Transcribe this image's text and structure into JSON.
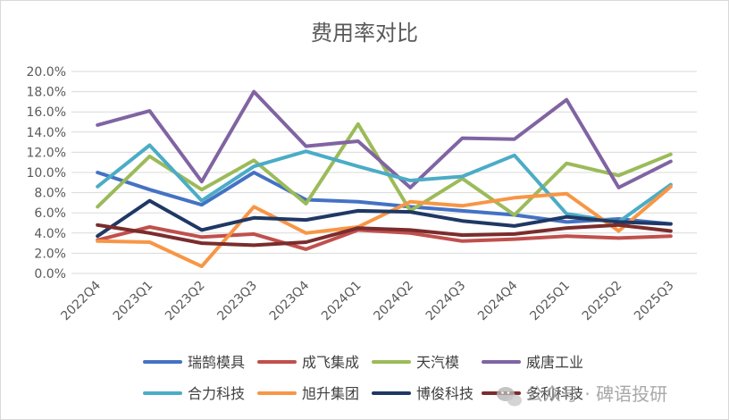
{
  "chart_data": {
    "type": "line",
    "title": "费用率对比",
    "xlabel": "",
    "ylabel": "",
    "ylim": [
      0,
      20
    ],
    "yticks": [
      "0.0%",
      "2.0%",
      "4.0%",
      "6.0%",
      "8.0%",
      "10.0%",
      "12.0%",
      "14.0%",
      "16.0%",
      "18.0%",
      "20.0%"
    ],
    "categories": [
      "2022Q4",
      "2023Q1",
      "2023Q2",
      "2023Q3",
      "2023Q4",
      "2024Q1",
      "2024Q2",
      "2024Q3",
      "2024Q4",
      "2025Q1",
      "2025Q2",
      "2025Q3"
    ],
    "grid": true,
    "legend_position": "bottom",
    "series": [
      {
        "name": "瑞鹄模具",
        "color": "#4472C4",
        "values": [
          10.0,
          8.3,
          6.8,
          10.0,
          7.3,
          7.1,
          6.6,
          6.2,
          5.8,
          5.1,
          5.4,
          4.9
        ]
      },
      {
        "name": "成飞集成",
        "color": "#C0504D",
        "values": [
          3.3,
          4.6,
          3.6,
          3.9,
          2.4,
          4.3,
          4.0,
          3.2,
          3.4,
          3.7,
          3.5,
          3.7
        ]
      },
      {
        "name": "天汽模",
        "color": "#9BBB59",
        "values": [
          6.6,
          11.6,
          8.3,
          11.2,
          6.9,
          14.8,
          6.2,
          9.4,
          5.8,
          10.9,
          9.7,
          11.8
        ]
      },
      {
        "name": "威唐工业",
        "color": "#8064A2",
        "values": [
          14.7,
          16.1,
          9.1,
          18.0,
          12.6,
          13.1,
          8.5,
          13.4,
          13.3,
          17.2,
          8.5,
          11.1
        ]
      },
      {
        "name": "合力科技",
        "color": "#4BACC6",
        "values": [
          8.6,
          12.7,
          7.2,
          10.6,
          12.1,
          10.6,
          9.2,
          9.6,
          11.7,
          5.9,
          5.1,
          8.8
        ]
      },
      {
        "name": "旭升集团",
        "color": "#F79646",
        "values": [
          3.2,
          3.1,
          0.7,
          6.6,
          4.0,
          4.6,
          7.1,
          6.7,
          7.5,
          7.9,
          4.2,
          8.6
        ]
      },
      {
        "name": "博俊科技",
        "color": "#1F3864",
        "values": [
          3.7,
          7.2,
          4.3,
          5.5,
          5.3,
          6.2,
          6.1,
          5.2,
          4.7,
          5.6,
          5.1,
          4.9
        ]
      },
      {
        "name": "多利科技",
        "color": "#7B2C2C",
        "values": [
          4.8,
          4.0,
          3.0,
          2.8,
          3.1,
          4.5,
          4.3,
          3.8,
          3.9,
          4.5,
          4.8,
          4.2
        ]
      }
    ]
  },
  "watermark": {
    "text": "公众号 · 碑语投研",
    "icon": "wechat-icon"
  }
}
